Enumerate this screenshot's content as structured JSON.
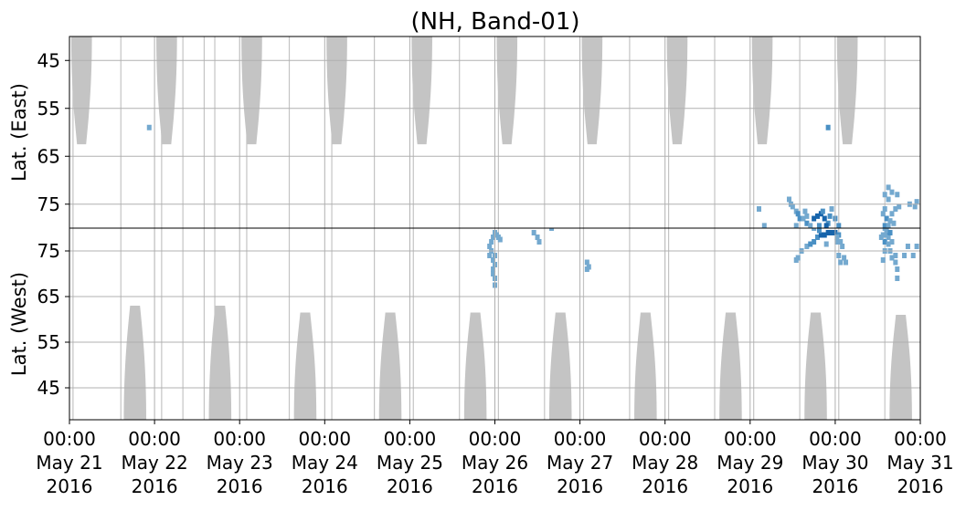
{
  "chart_data": {
    "type": "heatmap",
    "title": "(NH, Band-01)",
    "panels": [
      {
        "name": "east",
        "ylabel": "Lat. (East)",
        "y_axis_direction": "increasing-down",
        "yticks": [
          45,
          55,
          65,
          75
        ],
        "ylim": [
          40,
          80
        ]
      },
      {
        "name": "west",
        "ylabel": "Lat. (West)",
        "y_axis_direction": "increasing-up",
        "yticks": [
          75,
          65,
          55,
          45
        ],
        "ylim": [
          38,
          80
        ]
      }
    ],
    "x": {
      "start": "2016-05-21 00:00",
      "end": "2016-05-31 00:00",
      "tick_labels": [
        [
          "00:00",
          "May 21",
          "2016"
        ],
        [
          "00:00",
          "May 22",
          "2016"
        ],
        [
          "00:00",
          "May 23",
          "2016"
        ],
        [
          "00:00",
          "May 24",
          "2016"
        ],
        [
          "00:00",
          "May 25",
          "2016"
        ],
        [
          "00:00",
          "May 26",
          "2016"
        ],
        [
          "00:00",
          "May 27",
          "2016"
        ],
        [
          "00:00",
          "May 28",
          "2016"
        ],
        [
          "00:00",
          "May 29",
          "2016"
        ],
        [
          "00:00",
          "May 30",
          "2016"
        ],
        [
          "00:00",
          "May 31",
          "2016"
        ]
      ]
    },
    "grid": true,
    "colors": {
      "no_data_mask": "#c4c4c4",
      "data_light": "#74a9cf",
      "data_mid": "#4a90c4",
      "data_dark": "#1764ab",
      "grid": "#b0b0b0"
    },
    "no_data_mask": {
      "east": [
        [
          "2016-05-21 00:30",
          "2016-05-21 06:20",
          62.5
        ],
        [
          "2016-05-22 00:30",
          "2016-05-22 06:20",
          62.5
        ],
        [
          "2016-05-23 00:30",
          "2016-05-23 06:20",
          62.5
        ],
        [
          "2016-05-24 00:30",
          "2016-05-24 06:20",
          62.5
        ],
        [
          "2016-05-25 00:30",
          "2016-05-25 06:20",
          62.5
        ],
        [
          "2016-05-26 00:30",
          "2016-05-26 06:20",
          62.5
        ],
        [
          "2016-05-27 00:30",
          "2016-05-27 06:20",
          62.5
        ],
        [
          "2016-05-28 00:30",
          "2016-05-28 06:20",
          62.5
        ],
        [
          "2016-05-29 00:30",
          "2016-05-29 06:20",
          62.5
        ],
        [
          "2016-05-30 00:30",
          "2016-05-30 06:20",
          62.5
        ]
      ],
      "west": [
        [
          "2016-05-21 15:20",
          "2016-05-21 21:40",
          63
        ],
        [
          "2016-05-22 15:20",
          "2016-05-22 21:40",
          63
        ],
        [
          "2016-05-23 15:20",
          "2016-05-23 21:40",
          61.5
        ],
        [
          "2016-05-24 15:20",
          "2016-05-24 21:40",
          61.5
        ],
        [
          "2016-05-25 15:20",
          "2016-05-25 21:40",
          61.5
        ],
        [
          "2016-05-26 15:20",
          "2016-05-26 21:40",
          61.5
        ],
        [
          "2016-05-27 15:20",
          "2016-05-27 21:40",
          61.5
        ],
        [
          "2016-05-28 15:20",
          "2016-05-28 21:40",
          61.5
        ],
        [
          "2016-05-29 15:20",
          "2016-05-29 21:40",
          61.5
        ],
        [
          "2016-05-30 15:20",
          "2016-05-30 21:40",
          61
        ]
      ],
      "lines": [
        "2016-05-21 01:00",
        "2016-05-21 14:30",
        "2016-05-22 02:00",
        "2016-05-22 08:00",
        "2016-05-22 14:00",
        "2016-05-22 17:00",
        "2016-05-23 02:00",
        "2016-05-23 14:00",
        "2016-05-24 02:00",
        "2016-05-24 14:00",
        "2016-05-25 01:00",
        "2016-05-25 14:00",
        "2016-05-26 01:00",
        "2016-05-26 14:00",
        "2016-05-27 01:00",
        "2016-05-27 14:00",
        "2016-05-28 01:00",
        "2016-05-28 14:00",
        "2016-05-29 01:00",
        "2016-05-29 14:00",
        "2016-05-30 01:00",
        "2016-05-30 14:00"
      ]
    },
    "data_cells": [
      [
        "2016-05-26 00:00",
        74,
        "light"
      ],
      [
        "2016-05-26 00:00",
        72,
        "light"
      ],
      [
        "2016-05-25 23:30",
        71,
        "light"
      ],
      [
        "2016-05-25 23:30",
        73,
        "light"
      ],
      [
        "2016-05-25 23:00",
        75,
        "light"
      ],
      [
        "2016-05-25 23:00",
        77,
        "light"
      ],
      [
        "2016-05-25 22:30",
        76,
        "light"
      ],
      [
        "2016-05-25 22:30",
        74,
        "light"
      ],
      [
        "2016-05-25 23:30",
        78,
        "light"
      ],
      [
        "2016-05-26 00:00",
        79,
        "light"
      ],
      [
        "2016-05-26 00:30",
        78.5,
        "light"
      ],
      [
        "2016-05-26 01:00",
        78,
        "light"
      ],
      [
        "2016-05-26 01:30",
        77.5,
        "light"
      ],
      [
        "2016-05-26 00:00",
        69,
        "light"
      ],
      [
        "2016-05-25 23:30",
        70,
        "light"
      ],
      [
        "2016-05-26 00:00",
        67.5,
        "light"
      ],
      [
        "2016-05-26 11:00",
        79,
        "light"
      ],
      [
        "2016-05-26 12:00",
        78,
        "light"
      ],
      [
        "2016-05-26 12:30",
        77,
        "light"
      ],
      [
        "2016-05-26 16:00",
        80,
        "light"
      ],
      [
        "2016-05-27 02:00",
        72.5,
        "light"
      ],
      [
        "2016-05-27 02:30",
        71.5,
        "light"
      ],
      [
        "2016-05-27 02:00",
        71,
        "light"
      ],
      [
        "2016-05-29 13:00",
        73,
        "light"
      ],
      [
        "2016-05-29 13:30",
        73.5,
        "light"
      ],
      [
        "2016-05-29 14:30",
        75,
        "light"
      ],
      [
        "2016-05-29 16:00",
        76,
        "light"
      ],
      [
        "2016-05-29 17:00",
        76.5,
        "mid"
      ],
      [
        "2016-05-29 18:00",
        77,
        "mid"
      ],
      [
        "2016-05-29 19:00",
        78,
        "mid"
      ],
      [
        "2016-05-29 20:00",
        78.5,
        "dark"
      ],
      [
        "2016-05-29 21:00",
        78.5,
        "dark"
      ],
      [
        "2016-05-29 22:00",
        79,
        "dark"
      ],
      [
        "2016-05-29 23:00",
        79,
        "dark"
      ],
      [
        "2016-05-30 00:00",
        79,
        "dark"
      ],
      [
        "2016-05-30 01:00",
        78.5,
        "mid"
      ],
      [
        "2016-05-29 19:30",
        79.5,
        "mid"
      ],
      [
        "2016-05-29 21:30",
        76.5,
        "light"
      ],
      [
        "2016-05-30 00:30",
        77,
        "light"
      ],
      [
        "2016-05-29 18:00",
        80,
        "light"
      ],
      [
        "2016-05-30 00:30",
        78,
        "light"
      ],
      [
        "2016-05-30 01:30",
        77,
        "light"
      ],
      [
        "2016-05-30 02:00",
        76,
        "light"
      ],
      [
        "2016-05-30 01:00",
        74,
        "light"
      ],
      [
        "2016-05-30 02:30",
        73.5,
        "light"
      ],
      [
        "2016-05-30 03:00",
        72.5,
        "light"
      ],
      [
        "2016-05-30 01:30",
        72.5,
        "light"
      ],
      [
        "2016-05-30 13:30",
        73,
        "light"
      ],
      [
        "2016-05-30 14:00",
        75,
        "light"
      ],
      [
        "2016-05-30 14:00",
        77,
        "mid"
      ],
      [
        "2016-05-30 14:30",
        79,
        "mid"
      ],
      [
        "2016-05-30 15:00",
        78,
        "light"
      ],
      [
        "2016-05-30 16:00",
        77,
        "light"
      ],
      [
        "2016-05-30 17:00",
        74,
        "light"
      ],
      [
        "2016-05-30 14:30",
        79.5,
        "light"
      ],
      [
        "2016-05-30 15:30",
        79,
        "mid"
      ],
      [
        "2016-05-30 13:00",
        78,
        "light"
      ],
      [
        "2016-05-30 14:00",
        80,
        "light"
      ],
      [
        "2016-05-30 14:00",
        78.5,
        "light"
      ],
      [
        "2016-05-30 15:00",
        76.5,
        "light"
      ],
      [
        "2016-05-30 15:30",
        75,
        "light"
      ],
      [
        "2016-05-30 16:00",
        73.5,
        "light"
      ],
      [
        "2016-05-30 17:00",
        72.5,
        "light"
      ],
      [
        "2016-05-30 17:30",
        71,
        "light"
      ],
      [
        "2016-05-30 17:30",
        69,
        "light"
      ],
      [
        "2016-05-30 19:30",
        74,
        "light"
      ],
      [
        "2016-05-30 23:00",
        76,
        "light"
      ],
      [
        "2016-05-30 22:00",
        74,
        "light"
      ],
      [
        "2016-05-30 20:30",
        76,
        "light"
      ],
      [
        "2016-05-30 13:30",
        78.5,
        "light"
      ]
    ],
    "east_data_cells": [
      [
        "2016-05-29 02:30",
        76,
        "light"
      ],
      [
        "2016-05-29 04:00",
        79.5,
        "light"
      ],
      [
        "2016-05-29 11:00",
        74,
        "light"
      ],
      [
        "2016-05-29 11:30",
        75,
        "light"
      ],
      [
        "2016-05-29 12:00",
        75.5,
        "light"
      ],
      [
        "2016-05-29 13:00",
        76.5,
        "light"
      ],
      [
        "2016-05-29 13:30",
        77,
        "mid"
      ],
      [
        "2016-05-29 14:00",
        78,
        "mid"
      ],
      [
        "2016-05-29 15:00",
        78,
        "light"
      ],
      [
        "2016-05-29 16:00",
        77.5,
        "light"
      ],
      [
        "2016-05-29 16:00",
        79,
        "mid"
      ],
      [
        "2016-05-29 17:00",
        79.5,
        "light"
      ],
      [
        "2016-05-29 18:00",
        78,
        "dark"
      ],
      [
        "2016-05-29 19:00",
        77.5,
        "dark"
      ],
      [
        "2016-05-29 20:00",
        77,
        "dark"
      ],
      [
        "2016-05-29 21:00",
        78,
        "dark"
      ],
      [
        "2016-05-29 22:00",
        79,
        "mid"
      ],
      [
        "2016-05-29 23:00",
        76,
        "light"
      ],
      [
        "2016-05-30 00:00",
        78,
        "mid"
      ],
      [
        "2016-05-30 01:00",
        79.5,
        "mid"
      ],
      [
        "2016-05-29 19:30",
        79.5,
        "mid"
      ],
      [
        "2016-05-29 21:30",
        79.5,
        "dark"
      ],
      [
        "2016-05-29 13:00",
        79.5,
        "light"
      ],
      [
        "2016-05-29 15:30",
        76.5,
        "light"
      ],
      [
        "2016-05-29 20:30",
        76.5,
        "mid"
      ],
      [
        "2016-05-29 22:30",
        77.5,
        "mid"
      ],
      [
        "2016-05-29 22:00",
        59,
        "mid"
      ],
      [
        "2016-05-21 22:30",
        59,
        "light"
      ],
      [
        "2016-05-30 14:00",
        73,
        "light"
      ],
      [
        "2016-05-30 15:00",
        74,
        "light"
      ],
      [
        "2016-05-30 14:00",
        76,
        "light"
      ],
      [
        "2016-05-30 13:30",
        77,
        "light"
      ],
      [
        "2016-05-30 14:30",
        78,
        "mid"
      ],
      [
        "2016-05-30 15:30",
        78.5,
        "light"
      ],
      [
        "2016-05-30 14:00",
        79.5,
        "mid"
      ],
      [
        "2016-05-30 15:00",
        79.5,
        "light"
      ],
      [
        "2016-05-30 16:30",
        79,
        "light"
      ],
      [
        "2016-05-30 16:00",
        77,
        "light"
      ],
      [
        "2016-05-30 17:00",
        76,
        "light"
      ],
      [
        "2016-05-30 18:00",
        75.5,
        "light"
      ],
      [
        "2016-05-30 21:00",
        75,
        "light"
      ],
      [
        "2016-05-30 23:00",
        74.5,
        "light"
      ],
      [
        "2016-05-30 22:30",
        75.5,
        "light"
      ],
      [
        "2016-05-30 16:00",
        72.5,
        "light"
      ],
      [
        "2016-05-30 17:30",
        73,
        "light"
      ],
      [
        "2016-05-30 15:00",
        71.5,
        "light"
      ]
    ]
  }
}
